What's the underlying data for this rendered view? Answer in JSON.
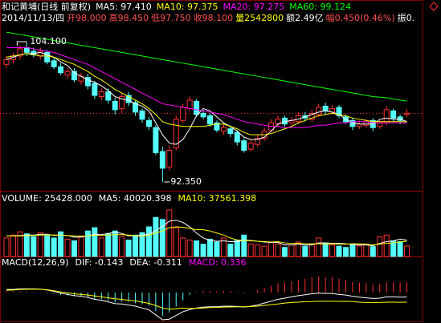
{
  "chart_data": {
    "type": "candlestick",
    "title": "和记黄埔(日线 前复权)",
    "title_color": "#ffffff",
    "info": [
      {
        "text": "2014/11/13/四",
        "color": "#ffffff"
      },
      {
        "text": "开98.000",
        "color": "#ff5050"
      },
      {
        "text": "高98.450",
        "color": "#ff5050"
      },
      {
        "text": "低97.750",
        "color": "#ff5050"
      },
      {
        "text": "收98.100",
        "color": "#ff5050"
      },
      {
        "text": "量2542800",
        "color": "#ffff00"
      },
      {
        "text": "额2.49亿",
        "color": "#ffffff"
      },
      {
        "text": "幅0.450(0.46%)",
        "color": "#ff5050"
      },
      {
        "text": "振0.",
        "color": "#ffffff"
      }
    ],
    "open": [
      102.2,
      102.6,
      102.9,
      103.6,
      103.3,
      102.9,
      103.2,
      102.5,
      102.0,
      101.3,
      101.6,
      100.8,
      101.1,
      100.6,
      99.5,
      99.9,
      99.1,
      98.5,
      99.6,
      99.0,
      98.3,
      97.5,
      96.9,
      94.9,
      93.6,
      95.2,
      97.5,
      98.5,
      99.1,
      98.1,
      97.9,
      97.3,
      96.6,
      96.8,
      96.5,
      95.8,
      95.1,
      95.5,
      96.0,
      96.7,
      97.2,
      97.7,
      97.3,
      97.4,
      97.9,
      97.6,
      98.0,
      98.7,
      98.2,
      98.6,
      97.8,
      97.5,
      97.0,
      97.1,
      97.5,
      97.0,
      97.3,
      98.3,
      97.8,
      98.0
    ],
    "high": [
      102.9,
      103.2,
      103.8,
      104.1,
      103.6,
      103.6,
      103.4,
      102.8,
      102.3,
      101.9,
      101.9,
      101.5,
      101.4,
      100.8,
      100.2,
      100.2,
      99.4,
      99.8,
      99.9,
      99.2,
      98.5,
      97.8,
      97.1,
      95.3,
      95.4,
      97.9,
      98.9,
      99.5,
      99.3,
      98.4,
      98.1,
      97.5,
      97.2,
      97.1,
      96.7,
      96.0,
      95.9,
      96.3,
      96.9,
      97.6,
      97.9,
      97.9,
      97.8,
      98.2,
      98.2,
      98.4,
      98.9,
      99.0,
      98.8,
      98.8,
      98.0,
      97.7,
      97.5,
      97.6,
      97.7,
      97.5,
      98.7,
      98.5,
      98.0,
      98.45
    ],
    "low": [
      101.9,
      102.3,
      102.6,
      102.9,
      102.8,
      102.6,
      102.2,
      101.8,
      101.3,
      101.0,
      100.7,
      100.5,
      100.1,
      99.3,
      99.2,
      98.9,
      98.0,
      98.1,
      98.7,
      97.9,
      97.3,
      96.7,
      94.6,
      92.35,
      93.3,
      95.0,
      97.3,
      98.3,
      97.8,
      97.6,
      97.0,
      96.5,
      96.3,
      96.1,
      95.4,
      94.8,
      94.9,
      95.3,
      95.8,
      96.5,
      97.0,
      97.0,
      97.1,
      97.2,
      97.4,
      97.4,
      97.8,
      98.0,
      98.0,
      97.7,
      97.2,
      96.7,
      96.8,
      96.9,
      96.6,
      96.8,
      97.1,
      97.4,
      97.2,
      97.75
    ],
    "close": [
      102.6,
      102.9,
      103.5,
      103.2,
      103.0,
      103.3,
      102.4,
      102.0,
      101.5,
      101.6,
      100.9,
      101.2,
      100.4,
      99.6,
      99.9,
      99.2,
      98.4,
      99.5,
      99.0,
      98.2,
      97.6,
      97.0,
      94.8,
      93.5,
      95.0,
      97.6,
      98.6,
      99.2,
      98.0,
      97.8,
      97.2,
      96.7,
      96.9,
      96.4,
      95.7,
      95.0,
      95.6,
      96.0,
      96.6,
      97.3,
      97.6,
      97.2,
      97.5,
      97.9,
      97.7,
      98.1,
      98.6,
      98.3,
      98.5,
      97.9,
      97.4,
      97.0,
      97.2,
      97.4,
      96.9,
      97.3,
      98.4,
      97.7,
      97.5,
      98.1
    ],
    "up_color": "#ff3232",
    "down_color": "#54fcfc",
    "series": [
      {
        "name": "MA5: 97.410",
        "color": "#ffffff",
        "values": [
          102.6,
          102.8,
          103.0,
          103.1,
          103.1,
          103.2,
          103.0,
          102.8,
          102.4,
          102.1,
          101.5,
          101.2,
          100.9,
          100.7,
          100.4,
          100.0,
          99.5,
          99.3,
          99.2,
          98.9,
          98.7,
          98.3,
          97.3,
          96.3,
          95.6,
          95.5,
          95.9,
          96.8,
          97.9,
          98.5,
          98.3,
          97.8,
          97.3,
          97.0,
          96.6,
          96.1,
          95.9,
          95.9,
          96.1,
          96.6,
          97.2,
          97.4,
          97.5,
          97.6,
          97.8,
          98.0,
          98.2,
          98.3,
          98.2,
          98.0,
          97.6,
          97.3,
          97.2,
          97.2,
          97.2,
          97.6,
          97.7,
          97.6,
          97.6,
          97.41
        ]
      },
      {
        "name": "MA10: 97.375",
        "color": "#ffff00",
        "values": [
          102.8,
          102.9,
          103.0,
          103.1,
          103.0,
          102.9,
          102.9,
          102.8,
          102.6,
          102.4,
          102.2,
          101.9,
          101.6,
          101.2,
          100.9,
          100.5,
          100.1,
          99.8,
          99.5,
          99.2,
          98.9,
          98.5,
          98.0,
          97.4,
          97.2,
          97.1,
          97.0,
          97.0,
          97.0,
          97.0,
          97.1,
          97.2,
          97.2,
          97.0,
          96.8,
          96.5,
          96.3,
          96.3,
          96.3,
          96.4,
          96.6,
          96.8,
          97.0,
          97.3,
          97.5,
          97.7,
          97.9,
          98.0,
          98.1,
          98.0,
          97.9,
          97.7,
          97.6,
          97.5,
          97.4,
          97.4,
          97.4,
          97.4,
          97.4,
          97.375
        ]
      },
      {
        "name": "MA20: 97.275",
        "color": "#ff00ff",
        "values": [
          103.6,
          103.6,
          103.6,
          103.6,
          103.5,
          103.4,
          103.3,
          103.2,
          103.0,
          102.8,
          102.6,
          102.4,
          102.2,
          101.9,
          101.6,
          101.3,
          101.0,
          100.7,
          100.4,
          100.1,
          99.8,
          99.5,
          99.2,
          98.9,
          98.8,
          98.7,
          98.6,
          98.5,
          98.4,
          98.3,
          98.2,
          98.1,
          98.0,
          97.8,
          97.6,
          97.4,
          97.3,
          97.2,
          97.1,
          97.0,
          97.0,
          96.9,
          96.9,
          96.9,
          96.9,
          97.0,
          97.1,
          97.1,
          97.2,
          97.3,
          97.3,
          97.4,
          97.4,
          97.4,
          97.3,
          97.3,
          97.3,
          97.3,
          97.3,
          97.275
        ]
      },
      {
        "name": "MA60: 99.124",
        "color": "#00ff00",
        "values": [
          104.9,
          104.8,
          104.7,
          104.6,
          104.5,
          104.4,
          104.3,
          104.2,
          104.1,
          104.0,
          103.9,
          103.8,
          103.7,
          103.6,
          103.5,
          103.4,
          103.3,
          103.2,
          103.1,
          103.0,
          102.9,
          102.8,
          102.7,
          102.6,
          102.5,
          102.4,
          102.3,
          102.2,
          102.1,
          102.0,
          101.9,
          101.8,
          101.7,
          101.6,
          101.5,
          101.4,
          101.3,
          101.2,
          101.1,
          101.0,
          100.9,
          100.8,
          100.7,
          100.6,
          100.5,
          100.4,
          100.3,
          100.2,
          100.1,
          100.0,
          99.9,
          99.8,
          99.7,
          99.6,
          99.5,
          99.45,
          99.4,
          99.3,
          99.2,
          99.12
        ]
      }
    ],
    "annotations": [
      {
        "text": "104.100"
      },
      {
        "text": "92.350"
      }
    ],
    "volume": {
      "name": "VOLUME: 25428.000",
      "color": "#ffffff",
      "values": [
        45000,
        52000,
        60000,
        55000,
        48000,
        58000,
        50000,
        45000,
        60000,
        42000,
        38000,
        50000,
        62000,
        70000,
        45000,
        55000,
        62000,
        48000,
        40000,
        52000,
        58000,
        72000,
        95000,
        90000,
        113000,
        70000,
        45000,
        40000,
        38000,
        30000,
        42000,
        35000,
        45000,
        30000,
        40000,
        52000,
        30000,
        28000,
        25000,
        35000,
        30000,
        22000,
        28000,
        35000,
        25000,
        30000,
        45000,
        32000,
        28000,
        25000,
        22000,
        30000,
        26000,
        30000,
        24000,
        48000,
        52000,
        38000,
        36000,
        25428
      ],
      "series": [
        {
          "name": "MA5: 40020.398",
          "color": "#ffffff",
          "values": [
            50000,
            50000,
            51000,
            52000,
            52000,
            54000,
            54000,
            51000,
            52000,
            51000,
            47000,
            47000,
            50000,
            54000,
            53000,
            56000,
            59000,
            56000,
            50000,
            51000,
            52000,
            54000,
            63000,
            73000,
            86000,
            88000,
            83000,
            72000,
            57000,
            45000,
            39000,
            37000,
            38000,
            36000,
            36000,
            40000,
            39000,
            37000,
            35000,
            34000,
            34000,
            28000,
            28000,
            30000,
            28000,
            28000,
            33000,
            33000,
            32000,
            32000,
            31000,
            29000,
            28000,
            28000,
            26000,
            32000,
            36000,
            38000,
            42000,
            40020.398
          ]
        },
        {
          "name": "MA10: 37561.398",
          "color": "#ffff00",
          "values": [
            50000,
            50000,
            50000,
            51000,
            51000,
            52000,
            52000,
            52000,
            52000,
            51000,
            50000,
            49000,
            50000,
            52000,
            51000,
            52000,
            53000,
            53000,
            52000,
            51000,
            49000,
            52000,
            57000,
            62000,
            70000,
            72000,
            71000,
            68000,
            65000,
            65000,
            62000,
            57000,
            52000,
            45000,
            40000,
            39000,
            38000,
            37000,
            36000,
            35000,
            36000,
            33000,
            32000,
            32000,
            31000,
            31000,
            31000,
            30000,
            31000,
            30000,
            30000,
            31000,
            31000,
            30000,
            28000,
            30000,
            32000,
            33000,
            35000,
            37561.398
          ]
        }
      ]
    },
    "macd": {
      "name": "MACD(12,26,9)",
      "color": "#ffffff",
      "series": [
        {
          "name": "DIF: -0.143",
          "color": "#ffffff",
          "values": [
            0.1,
            0.1,
            0.12,
            0.12,
            0.12,
            0.11,
            0.08,
            0.04,
            -0.02,
            -0.06,
            -0.1,
            -0.12,
            -0.16,
            -0.22,
            -0.25,
            -0.3,
            -0.36,
            -0.37,
            -0.4,
            -0.44,
            -0.5,
            -0.56,
            -0.72,
            -0.88,
            -0.86,
            -0.74,
            -0.62,
            -0.55,
            -0.5,
            -0.47,
            -0.46,
            -0.46,
            -0.44,
            -0.44,
            -0.45,
            -0.47,
            -0.44,
            -0.4,
            -0.34,
            -0.28,
            -0.22,
            -0.18,
            -0.14,
            -0.1,
            -0.07,
            -0.04,
            -0.02,
            -0.03,
            -0.03,
            -0.06,
            -0.08,
            -0.12,
            -0.15,
            -0.17,
            -0.19,
            -0.18,
            -0.14,
            -0.14,
            -0.15,
            -0.143
          ]
        },
        {
          "name": "DEA: -0.311",
          "color": "#ffff00",
          "label_color": "#ffffff",
          "values": [
            0.075,
            0.08,
            0.1,
            0.105,
            0.11,
            0.105,
            0.09,
            0.06,
            0.02,
            -0.01,
            -0.04,
            -0.06,
            -0.08,
            -0.11,
            -0.14,
            -0.17,
            -0.2,
            -0.22,
            -0.25,
            -0.27,
            -0.31,
            -0.35,
            -0.42,
            -0.5,
            -0.54,
            -0.52,
            -0.5,
            -0.51,
            -0.51,
            -0.5,
            -0.485,
            -0.48,
            -0.47,
            -0.465,
            -0.46,
            -0.46,
            -0.45,
            -0.44,
            -0.415,
            -0.39,
            -0.37,
            -0.34,
            -0.32,
            -0.31,
            -0.295,
            -0.29,
            -0.28,
            -0.28,
            -0.28,
            -0.285,
            -0.28,
            -0.29,
            -0.31,
            -0.32,
            -0.32,
            -0.32,
            -0.31,
            -0.31,
            -0.315,
            -0.311
          ]
        }
      ],
      "histogram": {
        "name": "MACD: 0.336",
        "label_color": "#ff00ff",
        "up_color": "#ff3232",
        "down_color": "#54fcfc",
        "values": [
          0.05,
          0.04,
          0.04,
          0.03,
          0.02,
          0.01,
          -0.02,
          -0.04,
          -0.08,
          -0.1,
          -0.12,
          -0.12,
          -0.16,
          -0.22,
          -0.22,
          -0.26,
          -0.32,
          -0.3,
          -0.3,
          -0.34,
          -0.38,
          -0.42,
          -0.6,
          -0.75,
          -0.65,
          -0.45,
          -0.25,
          -0.08,
          0.02,
          0.06,
          0.05,
          0.04,
          0.06,
          0.05,
          0.02,
          -0.02,
          0.02,
          0.08,
          0.15,
          0.22,
          0.3,
          0.32,
          0.36,
          0.42,
          0.45,
          0.5,
          0.52,
          0.5,
          0.5,
          0.45,
          0.4,
          0.34,
          0.32,
          0.3,
          0.26,
          0.28,
          0.34,
          0.34,
          0.33,
          0.336
        ]
      }
    }
  }
}
